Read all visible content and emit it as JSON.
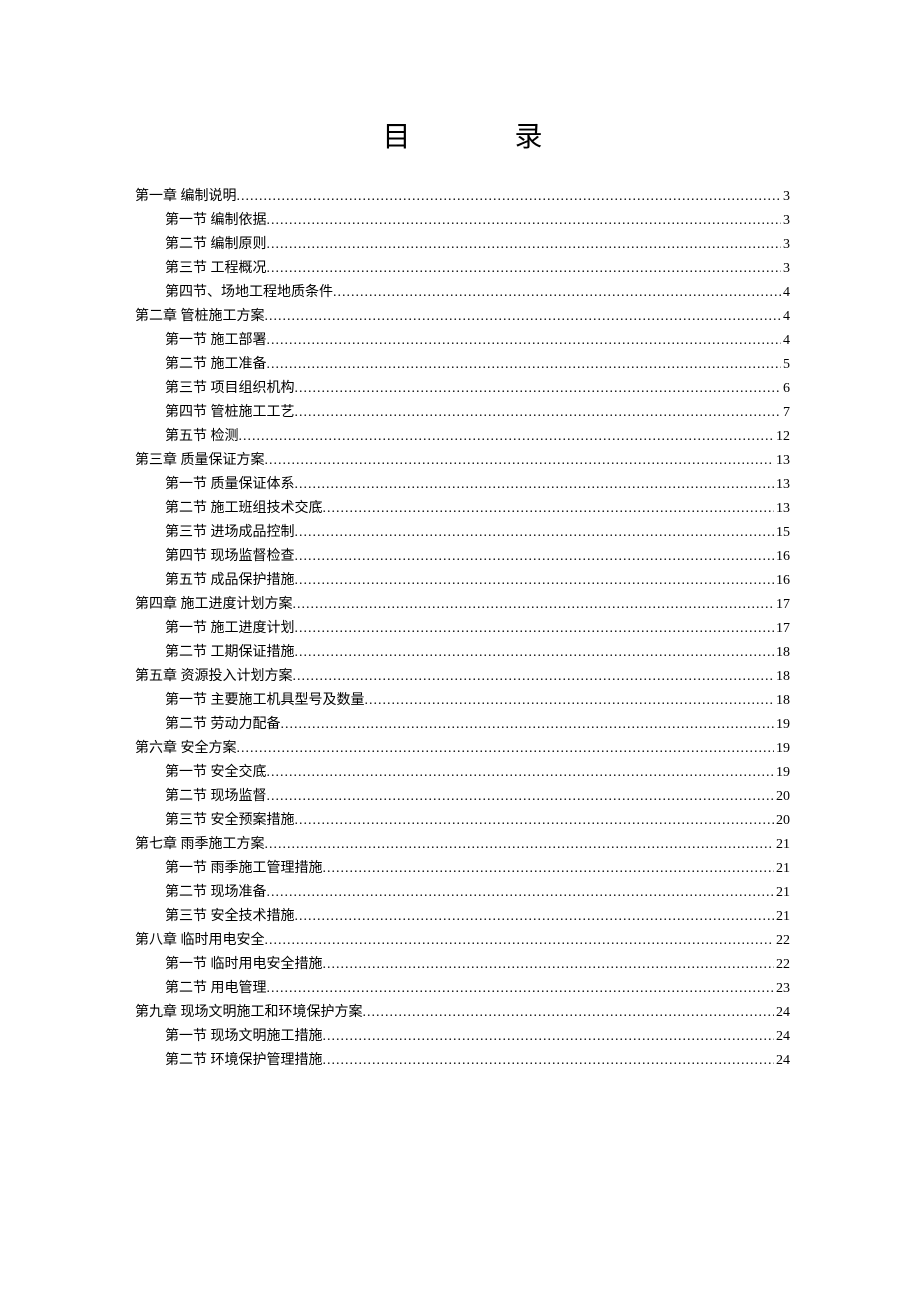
{
  "title": {
    "char1": "目",
    "char2": "录"
  },
  "toc": [
    {
      "level": 1,
      "label": "第一章   编制说明",
      "page": "3"
    },
    {
      "level": 2,
      "label": "第一节   编制依据",
      "page": "3"
    },
    {
      "level": 2,
      "label": "第二节   编制原则",
      "page": "3"
    },
    {
      "level": 2,
      "label": "第三节   工程概况",
      "page": "3"
    },
    {
      "level": 2,
      "label": "第四节、场地工程地质条件",
      "page": "4"
    },
    {
      "level": 1,
      "label": "第二章   管桩施工方案",
      "page": "4"
    },
    {
      "level": 2,
      "label": "第一节    施工部署",
      "page": "4"
    },
    {
      "level": 2,
      "label": "第二节    施工准备",
      "page": "5"
    },
    {
      "level": 2,
      "label": "第三节       项目组织机构",
      "page": "6"
    },
    {
      "level": 2,
      "label": "第四节    管桩施工工艺",
      "page": "7"
    },
    {
      "level": 2,
      "label": "第五节   检测",
      "page": "12"
    },
    {
      "level": 1,
      "label": "第三章   质量保证方案",
      "page": "13"
    },
    {
      "level": 2,
      "label": "第一节  质量保证体系",
      "page": "13"
    },
    {
      "level": 2,
      "label": "第二节   施工班组技术交底",
      "page": "13"
    },
    {
      "level": 2,
      "label": "第三节   进场成品控制",
      "page": "15"
    },
    {
      "level": 2,
      "label": "第四节   现场监督检查",
      "page": "16"
    },
    {
      "level": 2,
      "label": "第五节   成品保护措施",
      "page": "16"
    },
    {
      "level": 1,
      "label": "第四章    施工进度计划方案",
      "page": "17"
    },
    {
      "level": 2,
      "label": "第一节   施工进度计划",
      "page": "17"
    },
    {
      "level": 2,
      "label": "第二节   工期保证措施",
      "page": "18"
    },
    {
      "level": 1,
      "label": "第五章   资源投入计划方案",
      "page": "18"
    },
    {
      "level": 2,
      "label": "第一节   主要施工机具型号及数量",
      "page": "18"
    },
    {
      "level": 2,
      "label": "第二节   劳动力配备",
      "page": "19"
    },
    {
      "level": 1,
      "label": "第六章   安全方案",
      "page": "19"
    },
    {
      "level": 2,
      "label": "第一节   安全交底",
      "page": "19"
    },
    {
      "level": 2,
      "label": "第二节   现场监督",
      "page": "20"
    },
    {
      "level": 2,
      "label": "第三节   安全预案措施",
      "page": "20"
    },
    {
      "level": 1,
      "label": "第七章   雨季施工方案",
      "page": "21"
    },
    {
      "level": 2,
      "label": "第一节   雨季施工管理措施",
      "page": "21"
    },
    {
      "level": 2,
      "label": "第二节   现场准备",
      "page": "21"
    },
    {
      "level": 2,
      "label": "第三节   安全技术措施",
      "page": "21"
    },
    {
      "level": 1,
      "label": "第八章    临时用电安全",
      "page": "22"
    },
    {
      "level": 2,
      "label": "第一节   临时用电安全措施",
      "page": "22"
    },
    {
      "level": 2,
      "label": "第二节   用电管理",
      "page": "23"
    },
    {
      "level": 1,
      "label": "第九章   现场文明施工和环境保护方案",
      "page": "24"
    },
    {
      "level": 2,
      "label": "第一节   现场文明施工措施",
      "page": "24"
    },
    {
      "level": 2,
      "label": "第二节   环境保护管理措施",
      "page": "24"
    }
  ]
}
